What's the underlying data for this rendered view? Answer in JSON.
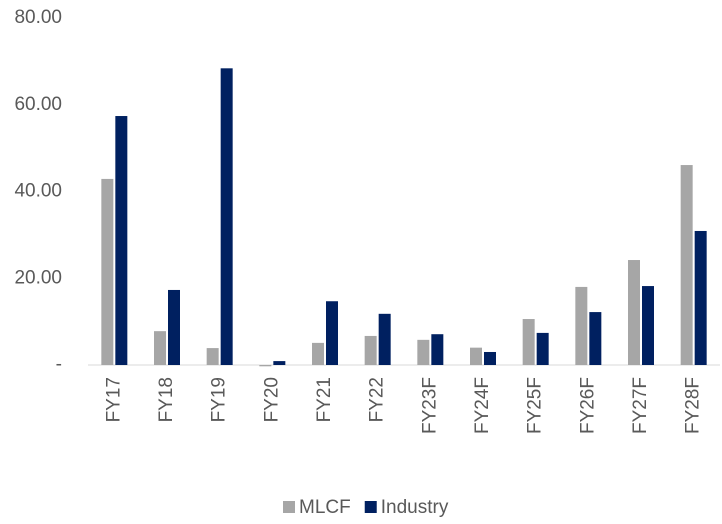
{
  "chart_data": {
    "type": "bar",
    "categories": [
      "FY17",
      "FY18",
      "FY19",
      "FY20",
      "FY21",
      "FY22",
      "FY23F",
      "FY24F",
      "FY25F",
      "FY26F",
      "FY27F",
      "FY28F"
    ],
    "series": [
      {
        "name": "MLCF",
        "color": "#a6a6a6",
        "values": [
          42.9,
          7.8,
          3.9,
          -0.3,
          5.1,
          6.7,
          5.8,
          4.0,
          10.6,
          18.0,
          24.2,
          46.1
        ]
      },
      {
        "name": "Industry",
        "color": "#002060",
        "values": [
          57.4,
          17.3,
          68.4,
          0.9,
          14.7,
          11.8,
          7.1,
          3.0,
          7.4,
          12.2,
          18.2,
          30.9
        ]
      }
    ],
    "ylim": [
      0,
      80
    ],
    "yticks": [
      {
        "value": 0,
        "label": "-"
      },
      {
        "value": 20,
        "label": "20.00"
      },
      {
        "value": 40,
        "label": "40.00"
      },
      {
        "value": 60,
        "label": "60.00"
      },
      {
        "value": 80,
        "label": "80.00"
      }
    ],
    "grid": false,
    "legend": "bottom"
  }
}
